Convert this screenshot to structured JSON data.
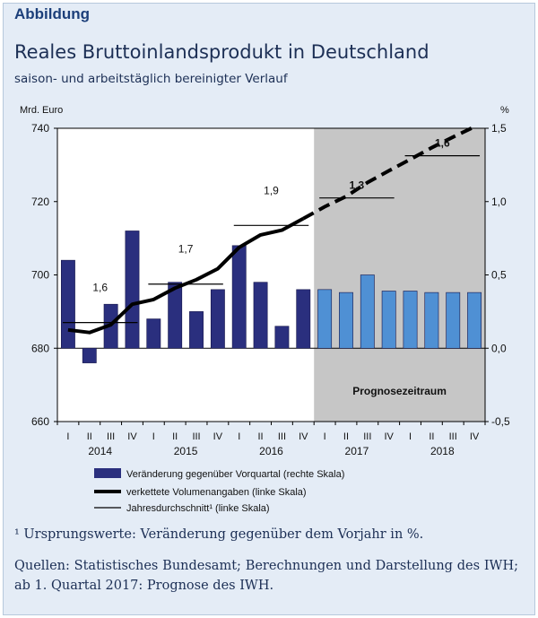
{
  "header": {
    "label": "Abbildung",
    "title": "Reales Bruttoinlandsprodukt in Deutschland",
    "subtitle": "saison- und arbeitstäglich bereinigter Verlauf"
  },
  "footer": {
    "footnote": "¹ Ursprungswerte: Veränderung gegenüber dem Vorjahr in %.",
    "sources": "Quellen: Statistisches Bundesamt; Berechnungen und Darstellung des IWH; ab 1. Quartal 2017: Prognose des IWH."
  },
  "chart_data": {
    "type": "bar",
    "left_axis": {
      "label": "Mrd. Euro",
      "range": [
        660,
        740
      ],
      "ticks": [
        660,
        680,
        700,
        720,
        740
      ]
    },
    "right_axis": {
      "label": "%",
      "range": [
        -0.5,
        1.5
      ],
      "ticks": [
        "-0,5",
        "0,0",
        "0,5",
        "1,0",
        "1,5"
      ],
      "tick_values": [
        -0.5,
        0.0,
        0.5,
        1.0,
        1.5
      ]
    },
    "quarter_labels": [
      "I",
      "II",
      "III",
      "IV",
      "I",
      "II",
      "III",
      "IV",
      "I",
      "II",
      "III",
      "IV",
      "I",
      "II",
      "III",
      "IV",
      "I",
      "II",
      "III",
      "IV"
    ],
    "years": [
      "2014",
      "2015",
      "2016",
      "2017",
      "2018"
    ],
    "forecast_region": {
      "label": "Prognosezeitraum",
      "start_index": 12,
      "end_index": 19
    },
    "series": [
      {
        "name": "Veränderung gegenüber Vorquartal (rechte Skala)",
        "type": "bar",
        "axis": "right",
        "color": "#2a2f7e",
        "forecast_color": "#4f90d4",
        "values": [
          0.6,
          -0.1,
          0.3,
          0.8,
          0.2,
          0.45,
          0.25,
          0.4,
          0.7,
          0.45,
          0.15,
          0.4,
          0.4,
          0.38,
          0.5,
          0.39,
          0.39,
          0.38,
          0.38,
          0.38
        ]
      },
      {
        "name": "verkettete Volumenangaben (linke Skala)",
        "type": "line",
        "axis": "left",
        "color": "#000000",
        "values": [
          685.0,
          684.3,
          686.4,
          692.0,
          693.3,
          696.4,
          698.7,
          701.7,
          707.5,
          710.9,
          712.2,
          715.4,
          718.6,
          721.4,
          725.2,
          728.4,
          731.5,
          734.7,
          737.6,
          740.4
        ],
        "dashed_from_index": 11
      },
      {
        "name": "Jahresdurchschnitt¹ (linke Skala)",
        "type": "step",
        "axis": "left",
        "color": "#000000",
        "values": [
          687.0,
          697.5,
          713.5,
          721.0,
          732.5
        ],
        "annotations": [
          "1,6",
          "1,7",
          "1,9",
          "1,3",
          "1,6"
        ]
      }
    ]
  }
}
